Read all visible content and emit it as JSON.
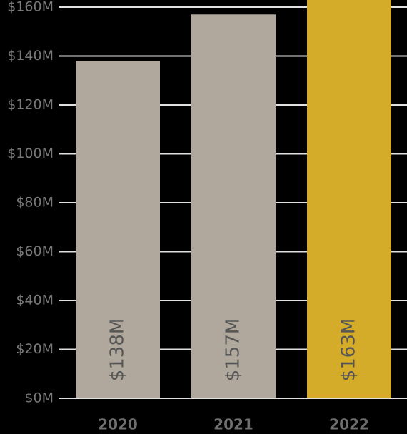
{
  "chart_data": {
    "type": "bar",
    "categories": [
      "2020",
      "2021",
      "2022"
    ],
    "values": [
      138,
      157,
      163
    ],
    "value_labels": [
      "$138M",
      "$157M",
      "$163M"
    ],
    "colors": [
      "#b0a89c",
      "#b0a89c",
      "#d5ab2a"
    ],
    "ylim": [
      0,
      160
    ],
    "yticks": [
      {
        "value": 0,
        "label": "$0M"
      },
      {
        "value": 20,
        "label": "$20M"
      },
      {
        "value": 40,
        "label": "$40M"
      },
      {
        "value": 60,
        "label": "$60M"
      },
      {
        "value": 80,
        "label": "$80M"
      },
      {
        "value": 100,
        "label": "$100M"
      },
      {
        "value": 120,
        "label": "$120M"
      },
      {
        "value": 140,
        "label": "$140M"
      },
      {
        "value": 160,
        "label": "$160M"
      }
    ],
    "grid": true
  }
}
